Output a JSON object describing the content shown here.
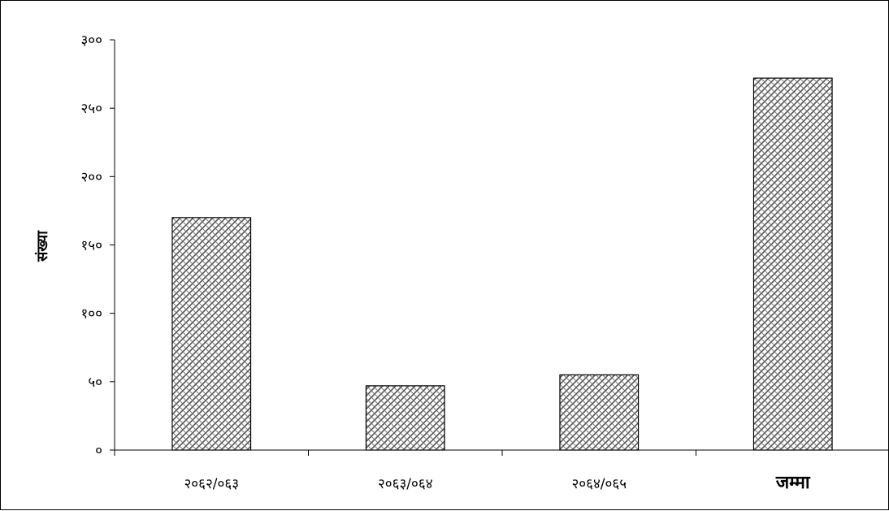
{
  "chart_data": {
    "type": "bar",
    "title": "",
    "xlabel": "",
    "ylabel": "संख्या",
    "categories": [
      "२०६२/०६३",
      "२०६३/०६४",
      "२०६४/०६५",
      "जम्मा"
    ],
    "category_bold": [
      false,
      false,
      false,
      true
    ],
    "values": [
      170,
      47,
      55,
      272
    ],
    "ylim": [
      0,
      300
    ],
    "yticks": [
      0,
      50,
      100,
      150,
      200,
      250,
      300
    ],
    "ytick_labels": [
      "०",
      "५०",
      "१००",
      "१५०",
      "२००",
      "२५०",
      "३००"
    ],
    "grid": false,
    "legend": "none",
    "bar_fill": "#808080",
    "bar_pattern": "crosshatch-weave",
    "axis_color": "#000000",
    "background": "#ffffff"
  }
}
